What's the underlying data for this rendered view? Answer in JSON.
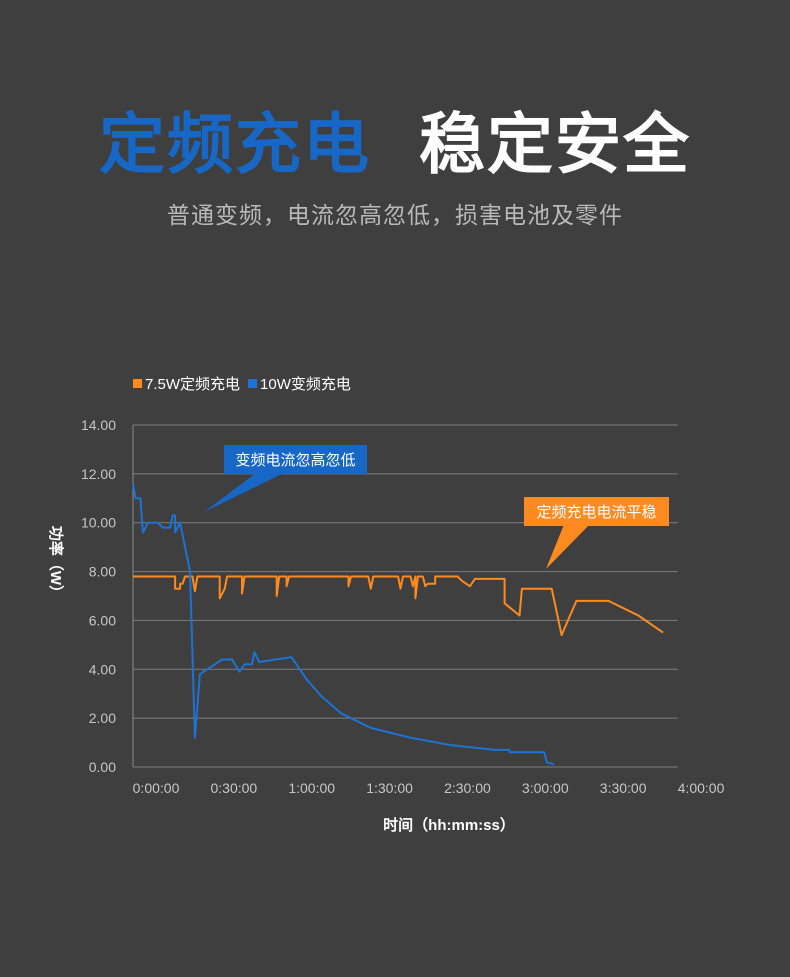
{
  "header": {
    "headline_blue": "定频充电",
    "headline_white": "稳定安全",
    "subtitle": "普通变频，电流忽高忽低，损害电池及零件"
  },
  "chart_data": {
    "type": "line",
    "ylabel": "功率（W）",
    "xlabel": "时间（hh:mm:ss）",
    "y_ticks": [
      "0.00",
      "2.00",
      "4.00",
      "6.00",
      "8.00",
      "10.00",
      "12.00",
      "14.00"
    ],
    "x_ticks": [
      "0:00:00",
      "0:30:00",
      "1:00:00",
      "1:30:00",
      "2:30:00",
      "3:00:00",
      "3:30:00",
      "4:00:00"
    ],
    "ylim": [
      0,
      14
    ],
    "x_unit": "minutes",
    "xlim": [
      0,
      220
    ],
    "grid": true,
    "legend_position": "top-left",
    "series": [
      {
        "name": "7.5W定频充电",
        "color": "#ff8a1f",
        "points": [
          [
            0,
            7.8
          ],
          [
            17,
            7.8
          ],
          [
            17,
            7.3
          ],
          [
            19,
            7.3
          ],
          [
            19,
            7.5
          ],
          [
            20,
            7.5
          ],
          [
            21,
            7.8
          ],
          [
            24,
            7.8
          ],
          [
            25,
            7.2
          ],
          [
            26,
            7.8
          ],
          [
            35,
            7.8
          ],
          [
            35,
            6.9
          ],
          [
            37,
            7.3
          ],
          [
            38,
            7.8
          ],
          [
            44,
            7.8
          ],
          [
            44,
            7.1
          ],
          [
            45,
            7.8
          ],
          [
            58,
            7.8
          ],
          [
            58,
            7.0
          ],
          [
            59,
            7.8
          ],
          [
            62,
            7.8
          ],
          [
            62,
            7.4
          ],
          [
            63,
            7.8
          ],
          [
            87,
            7.8
          ],
          [
            87,
            7.4
          ],
          [
            88,
            7.8
          ],
          [
            95,
            7.8
          ],
          [
            96,
            7.3
          ],
          [
            97,
            7.8
          ],
          [
            107,
            7.8
          ],
          [
            108,
            7.3
          ],
          [
            109,
            7.8
          ],
          [
            112,
            7.8
          ],
          [
            113,
            7.4
          ],
          [
            114,
            7.8
          ],
          [
            114,
            6.9
          ],
          [
            115,
            7.8
          ],
          [
            117,
            7.8
          ],
          [
            118,
            7.4
          ],
          [
            119,
            7.5
          ],
          [
            122,
            7.5
          ],
          [
            122,
            7.8
          ],
          [
            131,
            7.8
          ],
          [
            133,
            7.6
          ],
          [
            136,
            7.4
          ],
          [
            138,
            7.7
          ],
          [
            150,
            7.7
          ],
          [
            150,
            6.7
          ],
          [
            156,
            6.2
          ],
          [
            157,
            7.3
          ],
          [
            169,
            7.3
          ],
          [
            173,
            5.4
          ],
          [
            179,
            6.8
          ],
          [
            192,
            6.8
          ],
          [
            204,
            6.2
          ],
          [
            214,
            5.5
          ]
        ]
      },
      {
        "name": "10W变频充电",
        "color": "#1c73d3",
        "points": [
          [
            0,
            11.6
          ],
          [
            1,
            11.0
          ],
          [
            3,
            11.0
          ],
          [
            4,
            9.6
          ],
          [
            6,
            10.0
          ],
          [
            10,
            10.0
          ],
          [
            12,
            9.8
          ],
          [
            15,
            9.8
          ],
          [
            16,
            10.3
          ],
          [
            17,
            10.3
          ],
          [
            17,
            9.6
          ],
          [
            19,
            10.0
          ],
          [
            23,
            8.0
          ],
          [
            25,
            1.2
          ],
          [
            27,
            3.8
          ],
          [
            30,
            4.0
          ],
          [
            36,
            4.4
          ],
          [
            40,
            4.4
          ],
          [
            43,
            3.9
          ],
          [
            45,
            4.2
          ],
          [
            48,
            4.2
          ],
          [
            49,
            4.7
          ],
          [
            51,
            4.3
          ],
          [
            64,
            4.5
          ],
          [
            70,
            3.6
          ],
          [
            76,
            2.9
          ],
          [
            84,
            2.2
          ],
          [
            96,
            1.6
          ],
          [
            112,
            1.2
          ],
          [
            128,
            0.9
          ],
          [
            146,
            0.7
          ],
          [
            152,
            0.7
          ],
          [
            152,
            0.6
          ],
          [
            166,
            0.6
          ],
          [
            167,
            0.2
          ],
          [
            170,
            0.1
          ]
        ]
      }
    ],
    "annotations": [
      {
        "text": "变频电流忽高忽低",
        "color": "#1767c6"
      },
      {
        "text": "定频充电电流平稳",
        "color": "#ff8a1f"
      }
    ]
  }
}
